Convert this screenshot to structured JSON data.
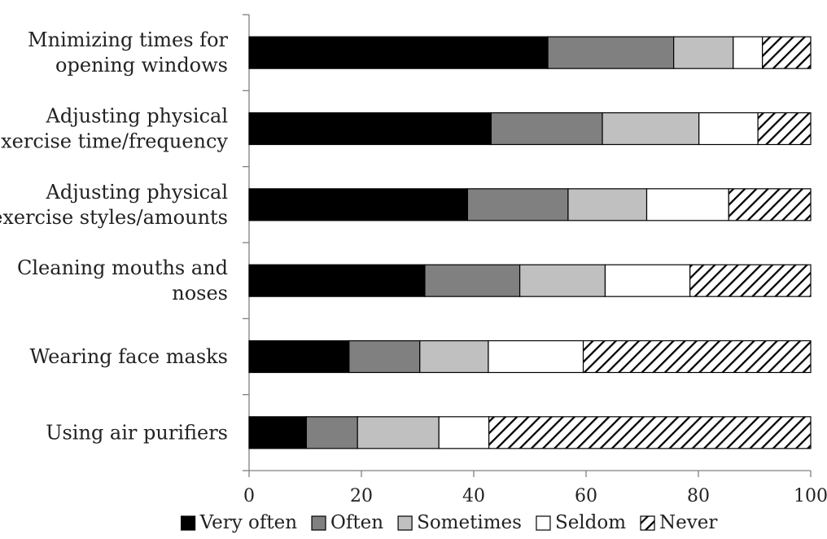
{
  "chart_data": {
    "type": "bar",
    "orientation": "horizontal",
    "stacked": true,
    "title": "",
    "xlabel": "",
    "ylabel": "",
    "xlim": [
      0,
      100
    ],
    "x_ticks": [
      "0",
      "20",
      "40",
      "60",
      "80",
      "100"
    ],
    "grid": false,
    "legend_position": "bottom",
    "categories": [
      [
        "Mnimizing times for",
        "opening windows"
      ],
      [
        "Adjusting physical",
        "exercise time/frequency"
      ],
      [
        "Adjusting physical",
        "exercise styles/amounts"
      ],
      [
        "Cleaning mouths and",
        "noses"
      ],
      [
        "Wearing face masks"
      ],
      [
        "Using air purifiers"
      ]
    ],
    "series": [
      {
        "name": "Very often",
        "fill": "#000000",
        "pattern": "solid",
        "values": [
          53.2,
          43.1,
          38.9,
          31.3,
          17.8,
          10.2
        ]
      },
      {
        "name": "Often",
        "fill": "#808080",
        "pattern": "solid",
        "values": [
          22.4,
          19.8,
          17.9,
          16.9,
          12.6,
          9.1
        ]
      },
      {
        "name": "Sometimes",
        "fill": "#c0c0c0",
        "pattern": "solid",
        "values": [
          10.6,
          17.2,
          14.0,
          15.2,
          12.2,
          14.5
        ]
      },
      {
        "name": "Seldom",
        "fill": "#ffffff",
        "pattern": "solid",
        "values": [
          5.2,
          10.5,
          14.6,
          15.1,
          16.9,
          8.9
        ]
      },
      {
        "name": "Never",
        "fill": "#ffffff",
        "pattern": "diagonal-hatch",
        "values": [
          8.6,
          9.4,
          14.6,
          21.5,
          40.5,
          57.3
        ]
      }
    ]
  }
}
